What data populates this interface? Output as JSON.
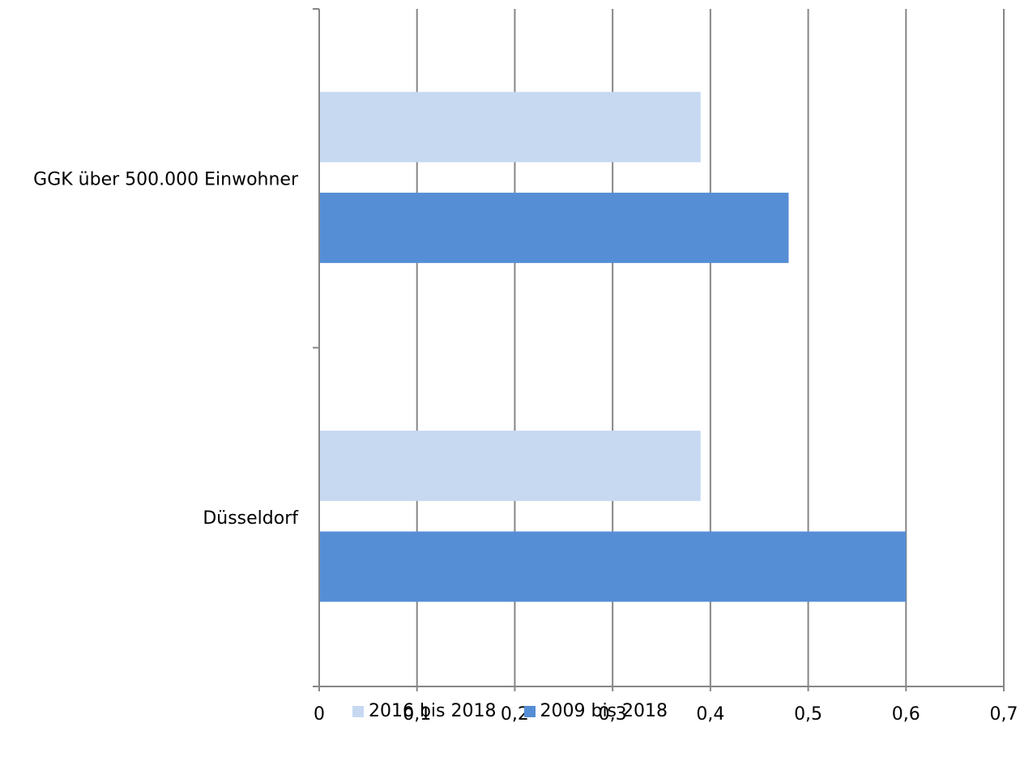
{
  "chart_data": {
    "type": "bar",
    "orientation": "horizontal",
    "categories": [
      "GGK über 500.000 Einwohner",
      "Düsseldorf"
    ],
    "series": [
      {
        "name": "2016 bis 2018",
        "color": "#c6d9f1",
        "values": [
          0.39,
          0.39
        ]
      },
      {
        "name": "2009 bis 2018",
        "color": "#558ed5",
        "values": [
          0.48,
          0.6
        ]
      }
    ],
    "xlim": [
      0,
      0.7
    ],
    "xticks": [
      0,
      0.1,
      0.2,
      0.3,
      0.4,
      0.5,
      0.6,
      0.7
    ],
    "xtick_labels": [
      "0",
      "0,1",
      "0,2",
      "0,3",
      "0,4",
      "0,5",
      "0,6",
      "0,7"
    ],
    "grid": "vertical",
    "legend_position": "bottom"
  }
}
